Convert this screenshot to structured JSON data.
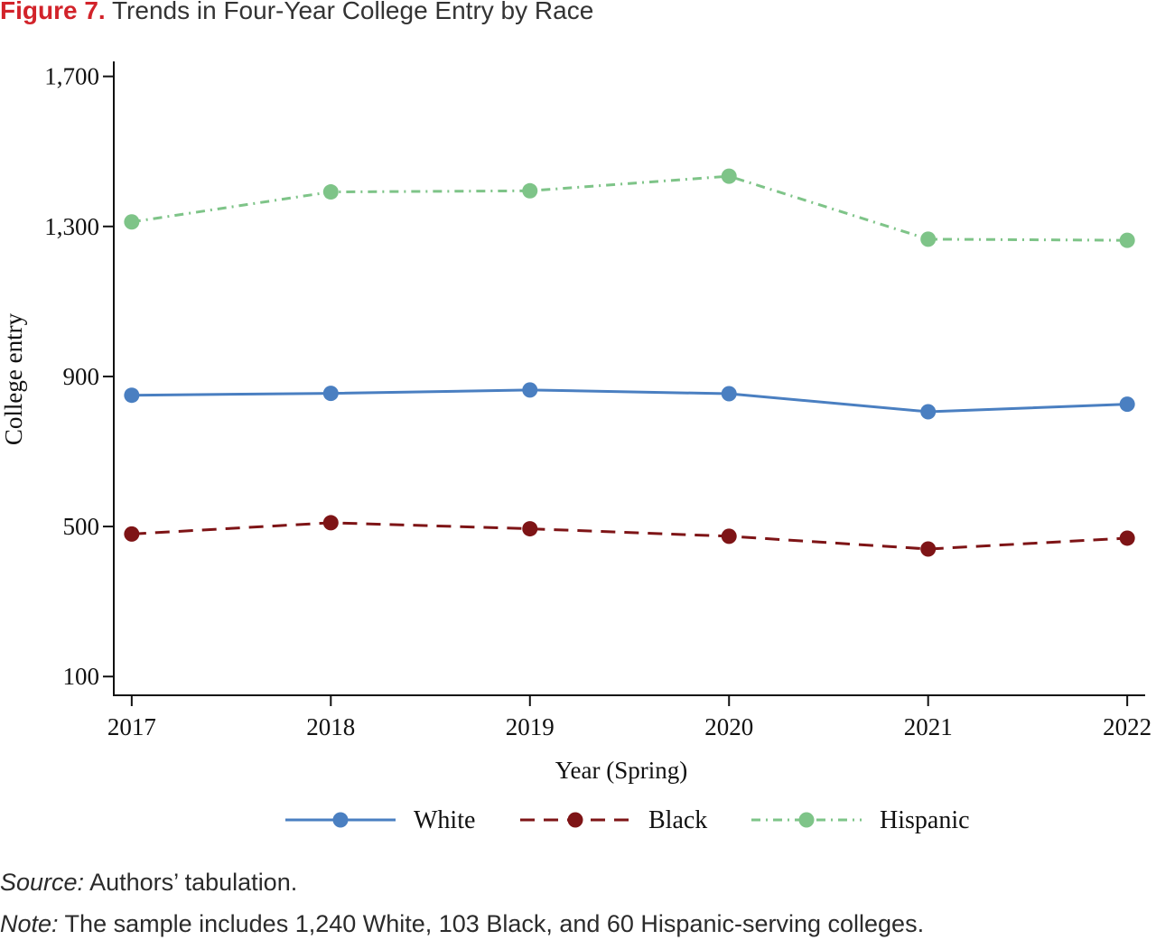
{
  "figure": {
    "number": "Figure 7.",
    "title": "Trends in Four-Year College Entry by Race"
  },
  "chart_data": {
    "type": "line",
    "xlabel": "Year (Spring)",
    "ylabel": "College entry",
    "x": [
      2017,
      2018,
      2019,
      2020,
      2021,
      2022
    ],
    "x_tick_labels": [
      "2017",
      "2018",
      "2019",
      "2020",
      "2021",
      "2022"
    ],
    "y_ticks": [
      100,
      500,
      900,
      1300,
      1700
    ],
    "y_tick_labels": [
      "100",
      "500",
      "900",
      "1,300",
      "1,700"
    ],
    "ylim": [
      50,
      1740
    ],
    "xlim": [
      2016.91,
      2022.09
    ],
    "grid": false,
    "legend_position": "bottom",
    "series": [
      {
        "name": "White",
        "color": "#4a7fc1",
        "dash": "solid",
        "values": [
          850,
          855,
          864,
          854,
          806,
          826
        ]
      },
      {
        "name": "Black",
        "color": "#7e1416",
        "dash": "dashed",
        "values": [
          480,
          510,
          494,
          474,
          440,
          469
        ]
      },
      {
        "name": "Hispanic",
        "color": "#7ec488",
        "dash": "dashdot",
        "values": [
          1312,
          1392,
          1395,
          1434,
          1266,
          1263
        ]
      }
    ]
  },
  "source": {
    "label": "Source:",
    "text": " Authors’ tabulation."
  },
  "note": {
    "label": "Note:",
    "text": " The sample includes 1,240 White, 103 Black, and 60 Hispanic-serving colleges."
  }
}
